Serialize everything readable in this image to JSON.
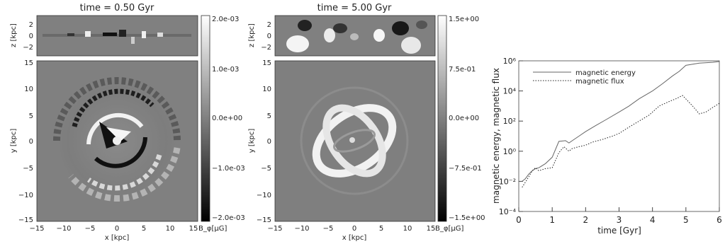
{
  "chart_data": [
    {
      "type": "heatmap",
      "title": "time = 0.50 Gyr",
      "top_panel": {
        "ylabel": "z [kpc]",
        "yticks": [
          "2",
          "0",
          "−2"
        ],
        "ylim": [
          -3.5,
          3.5
        ]
      },
      "main_panel": {
        "xlabel": "x [kpc]",
        "ylabel": "y [kpc]",
        "xticks": [
          "−15",
          "−10",
          "−5",
          "0",
          "5",
          "10",
          "15"
        ],
        "yticks": [
          "15",
          "10",
          "5",
          "0",
          "−5",
          "−10",
          "−15"
        ],
        "xlim": [
          -15,
          15
        ],
        "ylim": [
          -15,
          15
        ]
      },
      "colorbar": {
        "label": "B_φ[μG]",
        "ticks": [
          "2.0e-03",
          "1.0e-03",
          "0.0e+00",
          "−1.0e-03",
          "−2.0e-03"
        ],
        "range": [
          -0.002,
          0.002
        ]
      }
    },
    {
      "type": "heatmap",
      "title": "time = 5.00 Gyr",
      "top_panel": {
        "ylabel": "z [kpc]",
        "yticks": [
          "2",
          "0",
          "−2"
        ],
        "ylim": [
          -3.5,
          3.5
        ]
      },
      "main_panel": {
        "xlabel": "x [kpc]",
        "ylabel": "y [kpc]",
        "xticks": [
          "−15",
          "−10",
          "−5",
          "0",
          "5",
          "10",
          "15"
        ],
        "yticks": [
          "15",
          "10",
          "5",
          "0",
          "−5",
          "−10",
          "−15"
        ],
        "xlim": [
          -15,
          15
        ],
        "ylim": [
          -15,
          15
        ]
      },
      "colorbar": {
        "label": "B_φ[μG]",
        "ticks": [
          "1.5e+00",
          "7.5e-01",
          "0.0e+00",
          "−7.5e-01",
          "−1.5e+00"
        ],
        "range": [
          -1.5,
          1.5
        ]
      }
    },
    {
      "type": "line",
      "xlabel": "time [Gyr]",
      "ylabel": "magnetic energy, magnetic flux",
      "xlim": [
        0,
        6
      ],
      "ylim": [
        0.0001,
        1000000
      ],
      "yscale": "log",
      "xticks": [
        "0",
        "1",
        "2",
        "3",
        "4",
        "5",
        "6"
      ],
      "yticks": [
        "10⁻⁴",
        "10⁻²",
        "10⁰",
        "10²",
        "10⁴",
        "10⁶"
      ],
      "legend_position": "top-left",
      "series": [
        {
          "name": "magnetic energy",
          "style": "solid",
          "x": [
            0.1,
            0.2,
            0.3,
            0.4,
            0.5,
            0.6,
            0.8,
            1.0,
            1.2,
            1.4,
            1.5,
            1.6,
            1.8,
            2.0,
            2.3,
            2.6,
            3.0,
            3.3,
            3.6,
            4.0,
            4.3,
            4.6,
            4.8,
            5.0,
            5.4,
            5.8,
            6.0
          ],
          "y": [
            0.01,
            0.015,
            0.03,
            0.05,
            0.07,
            0.08,
            0.15,
            0.4,
            4.5,
            5,
            3.5,
            5,
            10,
            20,
            50,
            120,
            400,
            1000,
            3000,
            10000,
            30000,
            100000,
            200000,
            500000,
            700000,
            800000,
            900000
          ]
        },
        {
          "name": "magnetic flux",
          "style": "dotted",
          "x": [
            0.1,
            0.3,
            0.4,
            0.5,
            0.6,
            0.8,
            1.0,
            1.2,
            1.35,
            1.5,
            1.6,
            1.8,
            2.0,
            2.2,
            2.5,
            2.8,
            3.0,
            3.3,
            3.6,
            3.9,
            4.2,
            4.5,
            4.7,
            4.9,
            5.2,
            5.4,
            5.6,
            5.8,
            6.0
          ],
          "y": [
            0.004,
            0.02,
            0.05,
            0.08,
            0.05,
            0.07,
            0.08,
            0.8,
            2,
            1,
            1.5,
            2,
            2.5,
            4,
            6,
            10,
            15,
            40,
            100,
            250,
            1000,
            2000,
            3000,
            5000,
            1000,
            300,
            400,
            800,
            1500
          ]
        }
      ]
    }
  ]
}
